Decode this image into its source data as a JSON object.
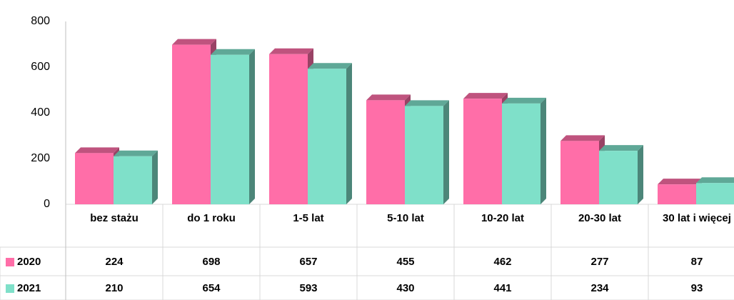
{
  "chart_data": {
    "type": "bar",
    "categories": [
      "bez stażu",
      "do 1 roku",
      "1-5 lat",
      "5-10 lat",
      "10-20 lat",
      "20-30 lat",
      "30 lat i więcej"
    ],
    "series": [
      {
        "name": "2020",
        "color": "#ff6ea8",
        "values": [
          224,
          698,
          657,
          455,
          462,
          277,
          87
        ]
      },
      {
        "name": "2021",
        "color": "#7fe0c9",
        "values": [
          210,
          654,
          593,
          430,
          441,
          234,
          93
        ]
      }
    ],
    "ylim": [
      0,
      800
    ],
    "yticks": [
      0,
      200,
      400,
      600,
      800
    ],
    "data_table": true
  }
}
